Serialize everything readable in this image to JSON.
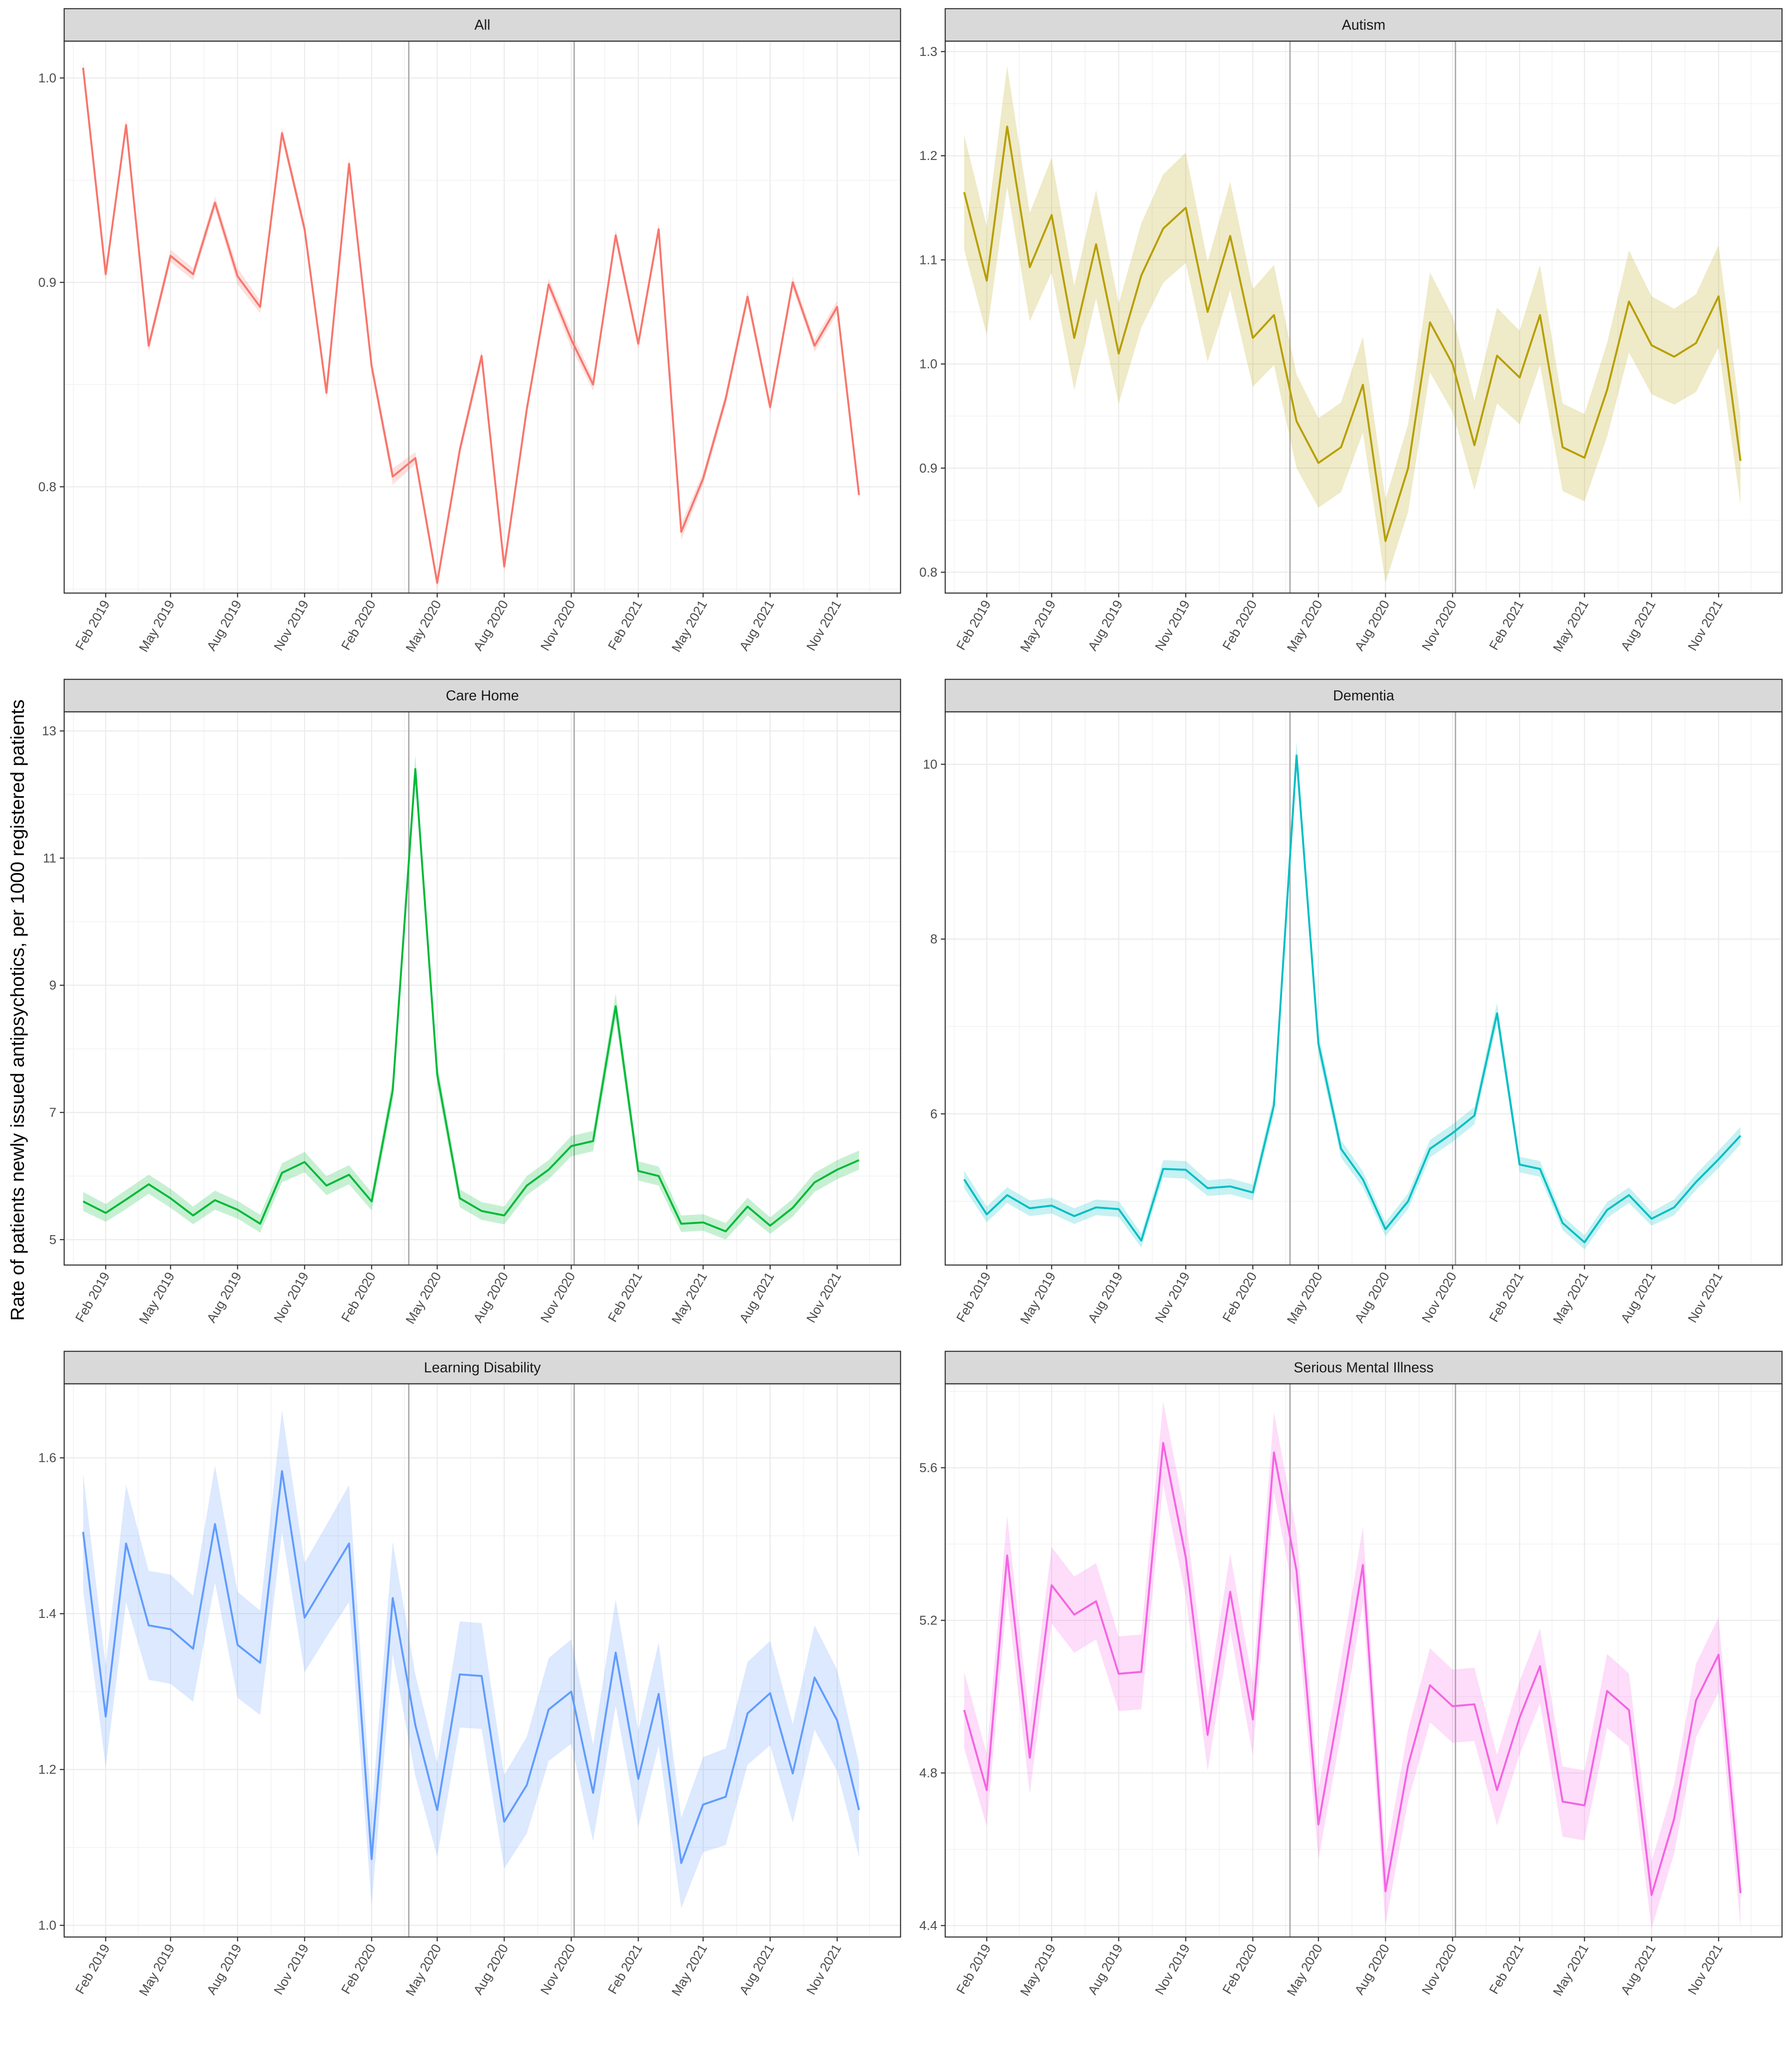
{
  "chart_data": {
    "type": "line",
    "ylabel": "Rate of patients newly issued antipsychotics, per 1000 registered patients",
    "x_tick_labels": [
      "Feb 2019",
      "May 2019",
      "Aug 2019",
      "Nov 2019",
      "Feb 2020",
      "May 2020",
      "Aug 2020",
      "Nov 2020",
      "Feb 2021",
      "May 2021",
      "Aug 2021",
      "Nov 2021"
    ],
    "x_tick_month_index": [
      1,
      4,
      7,
      10,
      13,
      16,
      19,
      22,
      25,
      28,
      31,
      34
    ],
    "x_months": [
      "2019-01",
      "2019-02",
      "2019-03",
      "2019-04",
      "2019-05",
      "2019-06",
      "2019-07",
      "2019-08",
      "2019-09",
      "2019-10",
      "2019-11",
      "2019-12",
      "2020-01",
      "2020-02",
      "2020-03",
      "2020-04",
      "2020-05",
      "2020-06",
      "2020-07",
      "2020-08",
      "2020-09",
      "2020-10",
      "2020-11",
      "2020-12",
      "2021-01",
      "2021-02",
      "2021-03",
      "2021-04",
      "2021-05",
      "2021-06",
      "2021-07",
      "2021-08",
      "2021-09",
      "2021-10",
      "2021-11",
      "2021-12"
    ],
    "x_range": [
      "2018-12-06",
      "2022-01-27"
    ],
    "reference_lines_x": [
      "2020-03-23",
      "2020-11-05"
    ],
    "grid": true,
    "panels": [
      {
        "title": "All",
        "color": "#F8766D",
        "ylim": [
          0.748,
          1.018
        ],
        "yticks": [
          0.8,
          0.9,
          1.0
        ],
        "ytick_labels": [
          "0.8",
          "0.9",
          "1.0"
        ],
        "values": [
          1.005,
          0.904,
          0.977,
          0.869,
          0.913,
          0.904,
          0.939,
          0.903,
          0.888,
          0.973,
          0.926,
          0.846,
          0.958,
          0.859,
          0.805,
          0.814,
          0.753,
          0.818,
          0.864,
          0.761,
          0.838,
          0.899,
          0.872,
          0.85,
          0.923,
          0.87,
          0.926,
          0.778,
          0.804,
          0.843,
          0.893,
          0.839,
          0.9,
          0.869,
          0.888,
          0.796
        ],
        "band_halfwidth": [
          0.004,
          0.003,
          0.003,
          0.003,
          0.003,
          0.003,
          0.003,
          0.004,
          0.003,
          0.003,
          0.003,
          0.003,
          0.003,
          0.003,
          0.004,
          0.003,
          0.003,
          0.003,
          0.003,
          0.003,
          0.003,
          0.003,
          0.004,
          0.003,
          0.003,
          0.003,
          0.003,
          0.004,
          0.003,
          0.003,
          0.003,
          0.003,
          0.003,
          0.003,
          0.003,
          0.003
        ]
      },
      {
        "title": "Autism",
        "color": "#B79F00",
        "ylim": [
          0.78,
          1.31
        ],
        "yticks": [
          0.8,
          0.9,
          1.0,
          1.1,
          1.2,
          1.3
        ],
        "ytick_labels": [
          "0.8",
          "0.9",
          "1.0",
          "1.1",
          "1.2",
          "1.3"
        ],
        "values": [
          1.165,
          1.08,
          1.228,
          1.093,
          1.143,
          1.025,
          1.115,
          1.01,
          1.085,
          1.13,
          1.15,
          1.05,
          1.123,
          1.025,
          1.047,
          0.945,
          0.905,
          0.92,
          0.98,
          0.83,
          0.9,
          1.04,
          1.0,
          0.922,
          1.008,
          0.987,
          1.047,
          0.92,
          0.91,
          0.975,
          1.06,
          1.018,
          1.007,
          1.02,
          1.065,
          0.907
        ],
        "band_halfwidth": [
          0.055,
          0.052,
          0.058,
          0.052,
          0.055,
          0.05,
          0.052,
          0.048,
          0.05,
          0.052,
          0.053,
          0.048,
          0.052,
          0.047,
          0.048,
          0.045,
          0.043,
          0.043,
          0.046,
          0.04,
          0.042,
          0.048,
          0.046,
          0.043,
          0.046,
          0.045,
          0.048,
          0.042,
          0.042,
          0.045,
          0.049,
          0.047,
          0.046,
          0.047,
          0.049,
          0.042
        ]
      },
      {
        "title": "Care Home",
        "color": "#00BA38",
        "ylim": [
          4.6,
          13.3
        ],
        "yticks": [
          5,
          7,
          9,
          11,
          13
        ],
        "ytick_labels": [
          "5",
          "7",
          "9",
          "11",
          "13"
        ],
        "values": [
          5.6,
          5.42,
          5.63,
          5.87,
          5.65,
          5.38,
          5.62,
          5.47,
          5.25,
          6.05,
          6.22,
          5.85,
          6.02,
          5.6,
          7.35,
          12.4,
          7.6,
          5.65,
          5.45,
          5.38,
          5.85,
          6.1,
          6.47,
          6.55,
          8.67,
          6.08,
          6.0,
          5.25,
          5.27,
          5.13,
          5.52,
          5.22,
          5.5,
          5.9,
          6.1,
          6.25
        ],
        "band_halfwidth": [
          0.15,
          0.14,
          0.15,
          0.15,
          0.15,
          0.14,
          0.15,
          0.14,
          0.14,
          0.15,
          0.16,
          0.15,
          0.15,
          0.14,
          0.18,
          0.22,
          0.18,
          0.14,
          0.14,
          0.14,
          0.15,
          0.15,
          0.16,
          0.16,
          0.2,
          0.15,
          0.15,
          0.13,
          0.13,
          0.13,
          0.14,
          0.13,
          0.14,
          0.15,
          0.15,
          0.15
        ]
      },
      {
        "title": "Dementia",
        "color": "#00BFC4",
        "ylim": [
          4.27,
          10.6
        ],
        "yticks": [
          6,
          8,
          10
        ],
        "ytick_labels": [
          "6",
          "8",
          "10"
        ],
        "values": [
          5.25,
          4.85,
          5.07,
          4.92,
          4.95,
          4.83,
          4.93,
          4.91,
          4.55,
          5.37,
          5.36,
          5.15,
          5.17,
          5.1,
          6.1,
          10.1,
          6.8,
          5.6,
          5.25,
          4.68,
          5.0,
          5.6,
          5.78,
          5.98,
          7.15,
          5.42,
          5.37,
          4.75,
          4.53,
          4.9,
          5.07,
          4.8,
          4.93,
          5.22,
          5.48,
          5.75
        ],
        "band_halfwidth": [
          0.1,
          0.09,
          0.09,
          0.09,
          0.09,
          0.09,
          0.09,
          0.09,
          0.08,
          0.1,
          0.1,
          0.09,
          0.09,
          0.09,
          0.11,
          0.16,
          0.12,
          0.1,
          0.09,
          0.08,
          0.09,
          0.1,
          0.1,
          0.1,
          0.12,
          0.09,
          0.09,
          0.08,
          0.08,
          0.09,
          0.09,
          0.08,
          0.09,
          0.09,
          0.1,
          0.1
        ]
      },
      {
        "title": "Learning Disability",
        "color": "#619CFF",
        "ylim": [
          0.985,
          1.695
        ],
        "yticks": [
          1.0,
          1.2,
          1.4,
          1.6
        ],
        "ytick_labels": [
          "1.0",
          "1.2",
          "1.4",
          "1.6"
        ],
        "values": [
          1.505,
          1.268,
          1.49,
          1.385,
          1.38,
          1.355,
          1.515,
          1.36,
          1.337,
          1.583,
          1.395,
          1.442,
          1.49,
          1.085,
          1.42,
          1.257,
          1.148,
          1.322,
          1.32,
          1.133,
          1.18,
          1.277,
          1.3,
          1.17,
          1.35,
          1.188,
          1.297,
          1.08,
          1.155,
          1.165,
          1.272,
          1.298,
          1.195,
          1.318,
          1.263,
          1.148
        ],
        "band_halfwidth": [
          0.075,
          0.065,
          0.075,
          0.07,
          0.07,
          0.068,
          0.075,
          0.068,
          0.067,
          0.078,
          0.07,
          0.072,
          0.075,
          0.06,
          0.072,
          0.065,
          0.06,
          0.068,
          0.068,
          0.06,
          0.062,
          0.066,
          0.067,
          0.062,
          0.068,
          0.062,
          0.066,
          0.058,
          0.061,
          0.062,
          0.066,
          0.067,
          0.063,
          0.067,
          0.065,
          0.06
        ]
      },
      {
        "title": "Serious Mental Illness",
        "color": "#F564E3",
        "ylim": [
          4.37,
          5.82
        ],
        "yticks": [
          4.4,
          4.8,
          5.2,
          5.6
        ],
        "ytick_labels": [
          "4.4",
          "4.8",
          "5.2",
          "5.6"
        ],
        "values": [
          4.965,
          4.755,
          5.37,
          4.84,
          5.292,
          5.215,
          5.25,
          5.06,
          5.065,
          5.665,
          5.365,
          4.9,
          5.275,
          4.94,
          5.64,
          5.33,
          4.665,
          5.0,
          5.345,
          4.49,
          4.82,
          5.03,
          4.975,
          4.98,
          4.755,
          4.945,
          5.08,
          4.725,
          4.715,
          5.015,
          4.965,
          4.48,
          4.68,
          4.99,
          5.11,
          4.485
        ],
        "band_halfwidth": [
          0.1,
          0.095,
          0.105,
          0.095,
          0.1,
          0.1,
          0.1,
          0.098,
          0.098,
          0.108,
          0.103,
          0.095,
          0.1,
          0.095,
          0.105,
          0.1,
          0.092,
          0.097,
          0.1,
          0.088,
          0.093,
          0.097,
          0.096,
          0.096,
          0.093,
          0.096,
          0.098,
          0.092,
          0.092,
          0.097,
          0.096,
          0.088,
          0.091,
          0.096,
          0.098,
          0.088
        ]
      }
    ]
  }
}
